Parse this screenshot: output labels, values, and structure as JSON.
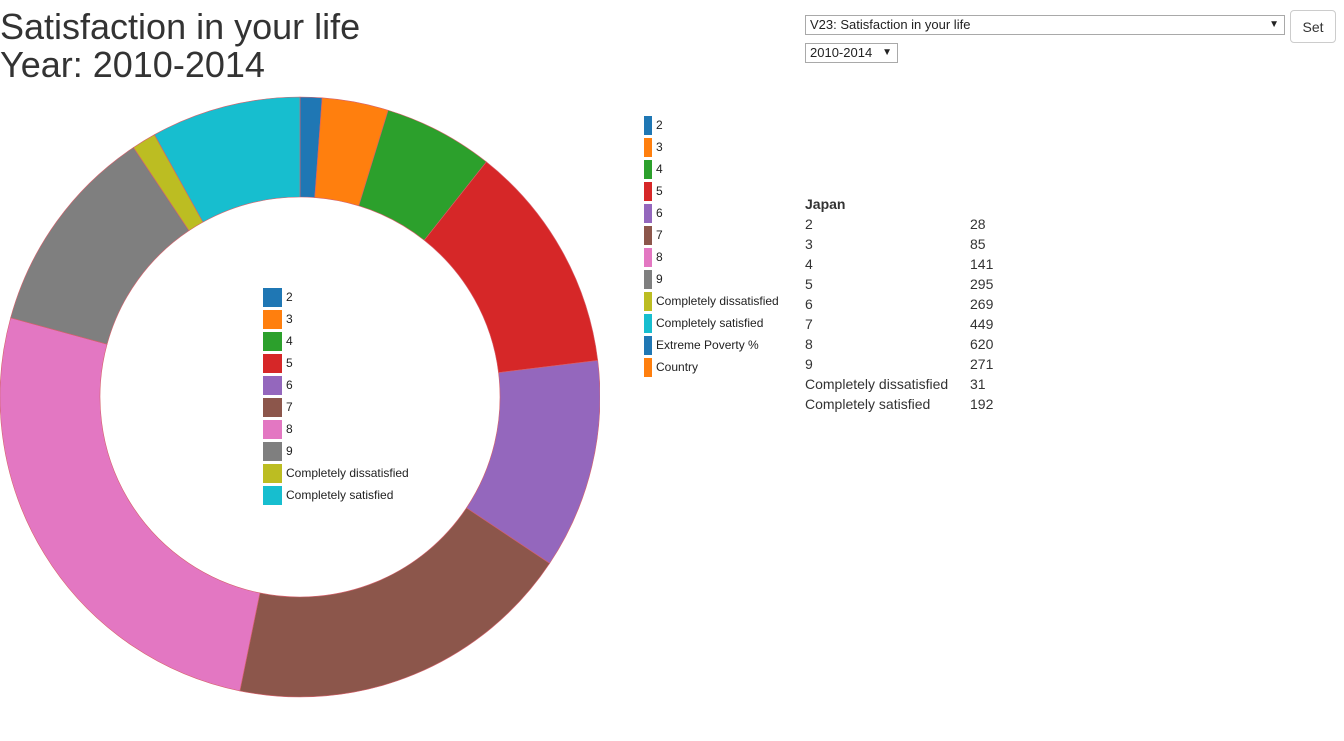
{
  "header": {
    "title_line1": "Satisfaction in your life",
    "title_line2": "Year: 2010-2014"
  },
  "controls": {
    "question_select": "V23: Satisfaction in your life",
    "year_select": "2010-2014",
    "set_label": "Set"
  },
  "table": {
    "country": "Japan",
    "rows": [
      {
        "label": "2",
        "value": "28"
      },
      {
        "label": "3",
        "value": "85"
      },
      {
        "label": "4",
        "value": "141"
      },
      {
        "label": "5",
        "value": "295"
      },
      {
        "label": "6",
        "value": "269"
      },
      {
        "label": "7",
        "value": "449"
      },
      {
        "label": "8",
        "value": "620"
      },
      {
        "label": "9",
        "value": "271"
      },
      {
        "label": "Completely dissatisfied",
        "value": "31"
      },
      {
        "label": "Completely satisfied",
        "value": "192"
      }
    ]
  },
  "side_legend": [
    {
      "label": "2",
      "color": "#1f77b4"
    },
    {
      "label": "3",
      "color": "#ff7f0e"
    },
    {
      "label": "4",
      "color": "#2ca02c"
    },
    {
      "label": "5",
      "color": "#d62728"
    },
    {
      "label": "6",
      "color": "#9467bd"
    },
    {
      "label": "7",
      "color": "#8c564b"
    },
    {
      "label": "8",
      "color": "#e377c2"
    },
    {
      "label": "9",
      "color": "#7f7f7f"
    },
    {
      "label": "Completely dissatisfied",
      "color": "#bcbd22"
    },
    {
      "label": "Completely satisfied",
      "color": "#17becf"
    },
    {
      "label": "Extreme Poverty %",
      "color": "#1f77b4"
    },
    {
      "label": "Country",
      "color": "#ff7f0e"
    }
  ],
  "chart_data": {
    "type": "pie",
    "style": "donut",
    "title": "Satisfaction in your life",
    "legend_position": "center",
    "categories": [
      "2",
      "3",
      "4",
      "5",
      "6",
      "7",
      "8",
      "9",
      "Completely dissatisfied",
      "Completely satisfied"
    ],
    "values": [
      28,
      85,
      141,
      295,
      269,
      449,
      620,
      271,
      31,
      192
    ],
    "colors": [
      "#1f77b4",
      "#ff7f0e",
      "#2ca02c",
      "#d62728",
      "#9467bd",
      "#8c564b",
      "#e377c2",
      "#7f7f7f",
      "#bcbd22",
      "#17becf"
    ]
  }
}
